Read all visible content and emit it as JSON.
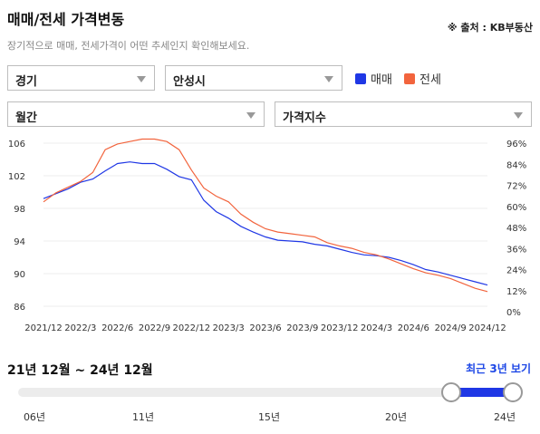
{
  "header": {
    "title": "매매/전세 가격변동",
    "source": "※ 출처 : KB부동산",
    "subtitle": "장기적으로 매매, 전세가격이 어떤 추세인지 확인해보세요."
  },
  "filters": {
    "region": "경기",
    "city": "안성시",
    "period": "월간",
    "metric": "가격지수"
  },
  "legend": [
    {
      "label": "매매",
      "color": "#1f37e5"
    },
    {
      "label": "전세",
      "color": "#f2643d"
    }
  ],
  "chart_data": {
    "type": "line",
    "x_ticks": [
      "2021/12",
      "2022/3",
      "2022/6",
      "2022/9",
      "2022/12",
      "2023/3",
      "2023/6",
      "2023/9",
      "2023/12",
      "2024/3",
      "2024/6",
      "2024/9",
      "2024/12"
    ],
    "y_left_ticks": [
      "106",
      "102",
      "98",
      "94",
      "90",
      "86"
    ],
    "y_right_ticks": [
      "96%",
      "84%",
      "72%",
      "60%",
      "48%",
      "36%",
      "24%",
      "12%",
      "0%"
    ],
    "ylim": [
      86,
      106
    ],
    "series": [
      {
        "name": "매매",
        "color": "#1f37e5",
        "values": [
          99.2,
          99.8,
          100.4,
          101.2,
          101.6,
          102.6,
          103.5,
          103.7,
          103.5,
          103.5,
          102.8,
          101.9,
          101.5,
          99.0,
          97.6,
          96.8,
          95.8,
          95.1,
          94.5,
          94.1,
          94.0,
          93.9,
          93.6,
          93.4,
          93.0,
          92.6,
          92.3,
          92.2,
          92.0,
          91.6,
          91.1,
          90.5,
          90.2,
          89.8,
          89.4,
          89.0,
          88.6
        ]
      },
      {
        "name": "전세",
        "color": "#f2643d",
        "values": [
          98.8,
          99.9,
          100.6,
          101.3,
          102.4,
          105.2,
          105.9,
          106.2,
          106.5,
          106.5,
          106.2,
          105.2,
          102.7,
          100.5,
          99.5,
          98.8,
          97.3,
          96.3,
          95.5,
          95.1,
          94.9,
          94.7,
          94.5,
          93.8,
          93.4,
          93.1,
          92.6,
          92.3,
          91.8,
          91.2,
          90.6,
          90.1,
          89.8,
          89.4,
          88.8,
          88.2,
          87.8
        ]
      }
    ]
  },
  "range": {
    "label": "21년 12월 ~ 24년 12월",
    "recent_button": "최근 3년 보기",
    "ticks": [
      "06년",
      "11년",
      "15년",
      "20년",
      "24년"
    ]
  }
}
